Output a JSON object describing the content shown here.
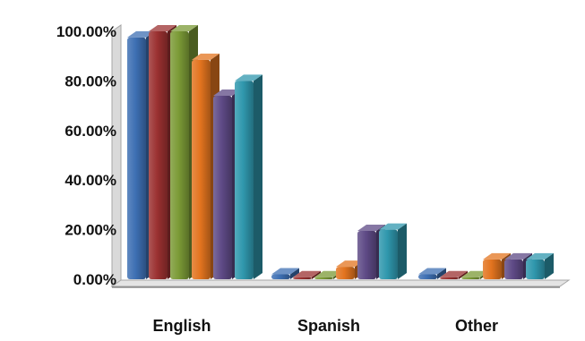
{
  "chart_data": {
    "type": "bar",
    "categories": [
      "English",
      "Spanish",
      "Other"
    ],
    "series": [
      {
        "values": [
          97.5,
          2.0,
          2.0
        ],
        "color": "#3d6fb3"
      },
      {
        "values": [
          100.0,
          0.8,
          0.8
        ],
        "color": "#9b3131"
      },
      {
        "values": [
          100.0,
          0.8,
          0.8
        ],
        "color": "#7b9a36"
      },
      {
        "values": [
          88.5,
          5.0,
          8.0
        ],
        "color": "#e3741f"
      },
      {
        "values": [
          74.0,
          19.5,
          8.0
        ],
        "color": "#5e4a86"
      },
      {
        "values": [
          80.0,
          20.0,
          8.0
        ],
        "color": "#2f97ad"
      }
    ],
    "ylim": [
      0,
      100
    ],
    "yticks": [
      0,
      20,
      40,
      60,
      80,
      100
    ],
    "ytick_labels": [
      "0.00%",
      "20.00%",
      "40.00%",
      "60.00%",
      "80.00%",
      "100.00%"
    ],
    "grid": false,
    "legend": "none",
    "style": "3d-clustered-column"
  }
}
